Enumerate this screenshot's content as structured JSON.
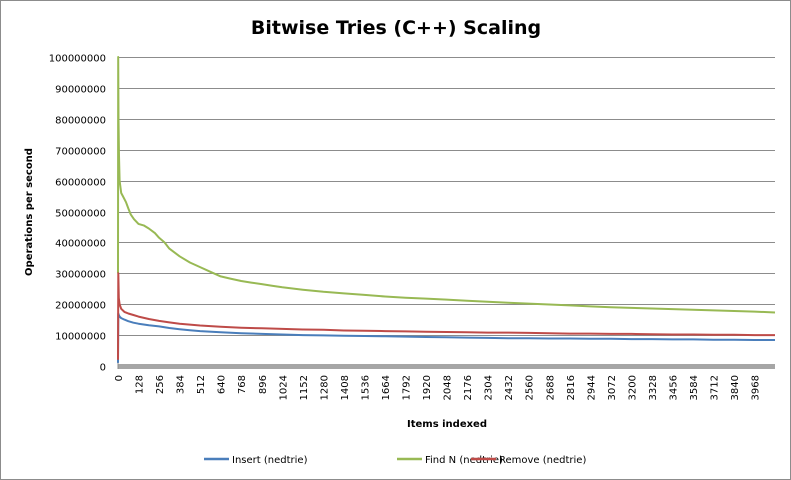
{
  "chart_data": {
    "type": "line",
    "title": "Bitwise Tries (C++) Scaling",
    "xlabel": "Items indexed",
    "ylabel": "Operations per second",
    "ylim": [
      0,
      100000000
    ],
    "yticks": [
      "0",
      "10000000",
      "20000000",
      "30000000",
      "40000000",
      "50000000",
      "60000000",
      "70000000",
      "80000000",
      "90000000",
      "100000000"
    ],
    "xlim": [
      0,
      4095
    ],
    "xticks": [
      "0",
      "128",
      "256",
      "384",
      "512",
      "640",
      "768",
      "896",
      "1024",
      "1152",
      "1280",
      "1408",
      "1536",
      "1664",
      "1792",
      "1920",
      "2048",
      "2176",
      "2304",
      "2432",
      "2560",
      "2688",
      "2816",
      "2944",
      "3072",
      "3200",
      "3328",
      "3456",
      "3584",
      "3712",
      "3840",
      "3968"
    ],
    "grid": "horizontal",
    "legend_position": "bottom",
    "series": [
      {
        "name": "Insert (nedtrie)",
        "color": "#4a7ebb",
        "x": [
          0,
          2,
          5,
          10,
          20,
          40,
          64,
          96,
          128,
          192,
          256,
          320,
          384,
          448,
          512,
          640,
          768,
          896,
          1024,
          1152,
          1280,
          1408,
          1536,
          1664,
          1792,
          1920,
          2048,
          2176,
          2304,
          2432,
          2560,
          2688,
          2816,
          2944,
          3072,
          3200,
          3328,
          3456,
          3584,
          3712,
          3840,
          3968,
          4095
        ],
        "values": [
          1000000,
          17000000,
          16500000,
          16000000,
          15500000,
          15000000,
          14500000,
          14000000,
          13700000,
          13200000,
          12800000,
          12300000,
          11900000,
          11600000,
          11300000,
          10900000,
          10600000,
          10400000,
          10200000,
          10000000,
          9900000,
          9800000,
          9700000,
          9600000,
          9500000,
          9400000,
          9300000,
          9200000,
          9100000,
          9000000,
          9000000,
          8900000,
          8900000,
          8800000,
          8800000,
          8700000,
          8700000,
          8600000,
          8600000,
          8500000,
          8500000,
          8400000,
          8400000
        ]
      },
      {
        "name": "Find N (nedtrie)",
        "color": "#98b954",
        "x": [
          0,
          1,
          3,
          6,
          10,
          20,
          30,
          50,
          64,
          80,
          100,
          128,
          160,
          192,
          230,
          256,
          290,
          320,
          384,
          448,
          512,
          576,
          640,
          700,
          768,
          830,
          896,
          960,
          1024,
          1152,
          1280,
          1408,
          1536,
          1664,
          1792,
          1920,
          2048,
          2176,
          2304,
          2432,
          2560,
          2688,
          2816,
          2944,
          3072,
          3200,
          3328,
          3456,
          3584,
          3712,
          3840,
          3968,
          4095
        ],
        "values": [
          30000000,
          100000000,
          80000000,
          68000000,
          60000000,
          56000000,
          55000000,
          53000000,
          51000000,
          49000000,
          47500000,
          46000000,
          45500000,
          44500000,
          43000000,
          41500000,
          40000000,
          38000000,
          35500000,
          33500000,
          32000000,
          30500000,
          29000000,
          28300000,
          27500000,
          27000000,
          26500000,
          26000000,
          25500000,
          24700000,
          24000000,
          23500000,
          23000000,
          22500000,
          22100000,
          21800000,
          21500000,
          21100000,
          20800000,
          20500000,
          20200000,
          19900000,
          19600000,
          19300000,
          19000000,
          18800000,
          18600000,
          18400000,
          18200000,
          18000000,
          17800000,
          17600000,
          17300000
        ]
      },
      {
        "name": "Remove (nedtrie)",
        "color": "#be4b48",
        "x": [
          0,
          2,
          5,
          10,
          20,
          40,
          64,
          96,
          128,
          192,
          256,
          320,
          384,
          448,
          512,
          640,
          768,
          896,
          1024,
          1152,
          1280,
          1408,
          1536,
          1664,
          1792,
          1920,
          2048,
          2176,
          2304,
          2432,
          2560,
          2688,
          2816,
          2944,
          3072,
          3200,
          3328,
          3456,
          3584,
          3712,
          3840,
          3968,
          4095
        ],
        "values": [
          2000000,
          30000000,
          22000000,
          20000000,
          18500000,
          17500000,
          17000000,
          16500000,
          16000000,
          15200000,
          14600000,
          14100000,
          13700000,
          13400000,
          13100000,
          12700000,
          12400000,
          12200000,
          12000000,
          11800000,
          11700000,
          11500000,
          11400000,
          11300000,
          11200000,
          11100000,
          11000000,
          10900000,
          10800000,
          10800000,
          10700000,
          10600000,
          10500000,
          10500000,
          10400000,
          10400000,
          10300000,
          10200000,
          10200000,
          10100000,
          10100000,
          10000000,
          10000000
        ]
      }
    ]
  }
}
